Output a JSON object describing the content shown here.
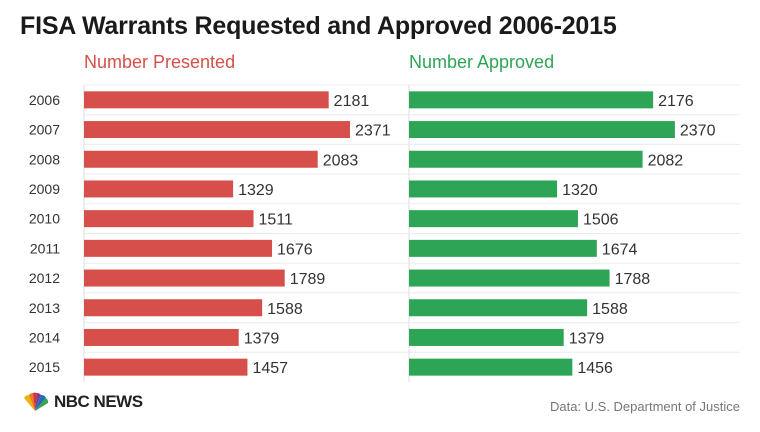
{
  "title": "FISA Warrants Requested and Approved 2006-2015",
  "logo_text": "NBC NEWS",
  "source": "Data: U.S. Department of Justice",
  "colors": {
    "presented": "#d64f4a",
    "approved": "#2ea556"
  },
  "chart_data": {
    "type": "bar",
    "orientation": "horizontal",
    "categories": [
      "2006",
      "2007",
      "2008",
      "2009",
      "2010",
      "2011",
      "2012",
      "2013",
      "2014",
      "2015"
    ],
    "series": [
      {
        "name": "Number Presented",
        "values": [
          2181,
          2371,
          2083,
          1329,
          1511,
          1676,
          1789,
          1588,
          1379,
          1457
        ]
      },
      {
        "name": "Number Approved",
        "values": [
          2176,
          2370,
          2082,
          1320,
          1506,
          1674,
          1788,
          1588,
          1379,
          1456
        ]
      }
    ],
    "xlim": [
      0,
      2371
    ],
    "grid": true
  }
}
